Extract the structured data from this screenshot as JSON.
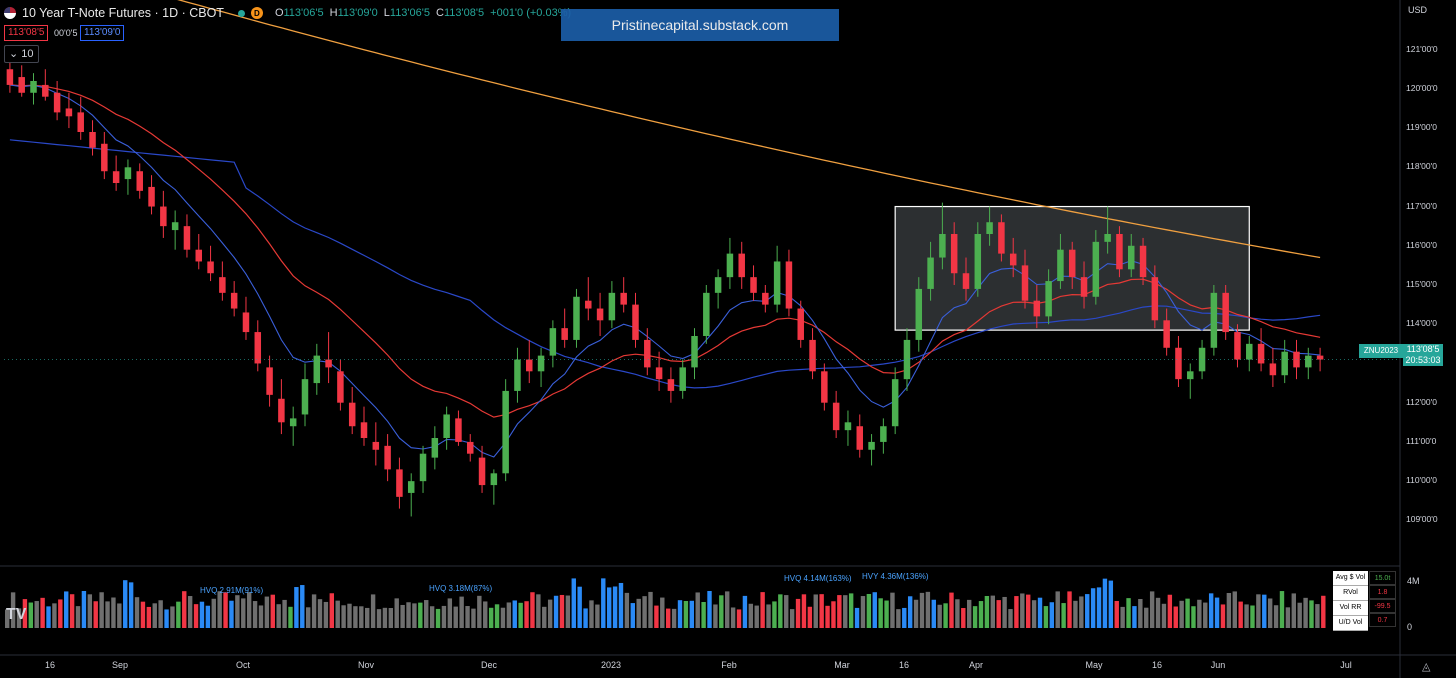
{
  "header": {
    "title": "10 Year T-Note Futures · 1D · CBOT",
    "d_badge": "D",
    "ohlc": {
      "o_label": "O",
      "o": "113'06'5",
      "h_label": "H",
      "h": "113'09'0",
      "l_label": "L",
      "l": "113'06'5",
      "c_label": "C",
      "c": "113'08'5",
      "change": "+001'0 (+0.03%)"
    },
    "bid": "113'08'5",
    "spread": "00'0'5",
    "ask": "113'09'0",
    "indicator": "10"
  },
  "watermark": "Pristinecapital.substack.com",
  "currency": "USD",
  "symbol_tag": "ZNU2023",
  "current_price": "113'08'5",
  "countdown": "20:53:03",
  "colors": {
    "up": "#4caf50",
    "down": "#f23645",
    "ema_fast": "#3a5fd9",
    "ema_slow": "#e53935",
    "sma50": "#2a48c8",
    "sma200": "#f0a040",
    "box": "#ffffff",
    "vol_blue": "#2a8af6",
    "vol_gray": "#6f6f6f"
  },
  "axis": {
    "price_ticks": [
      "121'00'0",
      "120'00'0",
      "119'00'0",
      "118'00'0",
      "117'00'0",
      "116'00'0",
      "115'00'0",
      "114'00'0",
      "113'00'0",
      "112'00'0",
      "111'00'0",
      "110'00'0",
      "109'00'0"
    ],
    "time_ticks": [
      "16",
      "Sep",
      "Oct",
      "Nov",
      "Dec",
      "2023",
      "Feb",
      "Mar",
      "16",
      "Apr",
      "May",
      "16",
      "Jun",
      "Jul"
    ],
    "volume_ticks": [
      "4M",
      "0"
    ]
  },
  "volume_annotations": [
    "HVQ 2.91M(91%)",
    "HVQ 3.18M(87%)",
    "HVQ 4.14M(163%)",
    "HVY 4.36M(136%)"
  ],
  "stats_table": [
    {
      "label": "Avg $ Vol",
      "value": "15.0t"
    },
    {
      "label": "RVol",
      "value": "1.8"
    },
    {
      "label": "Vol RR",
      "value": "-99.5"
    },
    {
      "label": "U/D Vol",
      "value": "0.7"
    }
  ],
  "chart_data": {
    "type": "candlestick",
    "title": "10 Year T-Note Futures · 1D · CBOT",
    "xlabel": "",
    "ylabel": "",
    "ylim": [
      108.5,
      121.5
    ],
    "x_start": "Aug 12",
    "x_end": "Jun 30",
    "candles": [
      [
        120.5,
        120.7,
        119.9,
        120.1
      ],
      [
        120.3,
        120.6,
        119.8,
        119.9
      ],
      [
        119.9,
        120.4,
        119.6,
        120.2
      ],
      [
        120.1,
        120.5,
        119.7,
        119.8
      ],
      [
        119.9,
        120.2,
        119.2,
        119.4
      ],
      [
        119.5,
        119.9,
        119.0,
        119.3
      ],
      [
        119.4,
        119.8,
        118.7,
        118.9
      ],
      [
        118.9,
        119.2,
        118.3,
        118.5
      ],
      [
        118.6,
        118.9,
        117.7,
        117.9
      ],
      [
        117.9,
        118.3,
        117.4,
        117.6
      ],
      [
        117.7,
        118.2,
        117.3,
        118.0
      ],
      [
        117.9,
        118.1,
        117.2,
        117.4
      ],
      [
        117.5,
        117.8,
        116.8,
        117.0
      ],
      [
        117.0,
        117.4,
        116.2,
        116.5
      ],
      [
        116.4,
        116.9,
        115.9,
        116.6
      ],
      [
        116.5,
        116.8,
        115.7,
        115.9
      ],
      [
        115.9,
        116.3,
        115.4,
        115.6
      ],
      [
        115.6,
        116.0,
        115.1,
        115.3
      ],
      [
        115.2,
        115.6,
        114.6,
        114.8
      ],
      [
        114.8,
        115.1,
        114.2,
        114.4
      ],
      [
        114.3,
        114.7,
        113.6,
        113.8
      ],
      [
        113.8,
        114.1,
        112.8,
        113.0
      ],
      [
        112.9,
        113.2,
        111.9,
        112.2
      ],
      [
        112.1,
        112.6,
        111.2,
        111.5
      ],
      [
        111.4,
        111.9,
        110.9,
        111.6
      ],
      [
        111.7,
        113.0,
        111.4,
        112.6
      ],
      [
        112.5,
        113.5,
        112.2,
        113.2
      ],
      [
        113.1,
        113.8,
        112.5,
        112.9
      ],
      [
        112.8,
        113.1,
        111.8,
        112.0
      ],
      [
        112.0,
        112.4,
        111.2,
        111.4
      ],
      [
        111.5,
        111.9,
        110.9,
        111.1
      ],
      [
        111.0,
        111.5,
        110.4,
        110.8
      ],
      [
        110.9,
        111.2,
        110.0,
        110.3
      ],
      [
        110.3,
        110.6,
        109.3,
        109.6
      ],
      [
        109.7,
        110.2,
        109.1,
        110.0
      ],
      [
        110.0,
        110.9,
        109.7,
        110.7
      ],
      [
        110.6,
        111.4,
        110.3,
        111.1
      ],
      [
        111.1,
        111.9,
        110.8,
        111.7
      ],
      [
        111.6,
        111.8,
        110.9,
        111.0
      ],
      [
        111.0,
        111.2,
        110.5,
        110.7
      ],
      [
        110.6,
        110.9,
        109.7,
        109.9
      ],
      [
        109.9,
        110.3,
        109.4,
        110.2
      ],
      [
        110.2,
        112.6,
        110.0,
        112.3
      ],
      [
        112.3,
        113.4,
        112.0,
        113.1
      ],
      [
        113.1,
        113.6,
        112.5,
        112.8
      ],
      [
        112.8,
        113.4,
        112.4,
        113.2
      ],
      [
        113.2,
        114.1,
        112.9,
        113.9
      ],
      [
        113.9,
        114.4,
        113.4,
        113.6
      ],
      [
        113.6,
        114.9,
        113.4,
        114.7
      ],
      [
        114.6,
        115.2,
        114.1,
        114.4
      ],
      [
        114.4,
        114.8,
        113.7,
        114.1
      ],
      [
        114.1,
        115.1,
        113.9,
        114.8
      ],
      [
        114.8,
        115.2,
        114.3,
        114.5
      ],
      [
        114.5,
        114.8,
        113.4,
        113.6
      ],
      [
        113.6,
        113.9,
        112.7,
        112.9
      ],
      [
        112.9,
        113.3,
        112.3,
        112.6
      ],
      [
        112.6,
        112.9,
        112.0,
        112.3
      ],
      [
        112.3,
        113.1,
        112.1,
        112.9
      ],
      [
        112.9,
        113.9,
        112.6,
        113.7
      ],
      [
        113.7,
        115.0,
        113.5,
        114.8
      ],
      [
        114.8,
        115.4,
        114.4,
        115.2
      ],
      [
        115.2,
        116.2,
        114.9,
        115.8
      ],
      [
        115.8,
        116.1,
        114.9,
        115.2
      ],
      [
        115.2,
        115.5,
        114.6,
        114.8
      ],
      [
        114.8,
        115.0,
        114.3,
        114.5
      ],
      [
        114.5,
        116.0,
        114.3,
        115.6
      ],
      [
        115.6,
        115.9,
        114.2,
        114.4
      ],
      [
        114.4,
        114.6,
        113.4,
        113.6
      ],
      [
        113.6,
        113.9,
        112.6,
        112.8
      ],
      [
        112.8,
        113.0,
        111.8,
        112.0
      ],
      [
        112.0,
        112.3,
        111.1,
        111.3
      ],
      [
        111.3,
        111.8,
        110.9,
        111.5
      ],
      [
        111.4,
        111.7,
        110.6,
        110.8
      ],
      [
        110.8,
        111.2,
        110.4,
        111.0
      ],
      [
        111.0,
        111.6,
        110.7,
        111.4
      ],
      [
        111.4,
        112.9,
        111.2,
        112.6
      ],
      [
        112.6,
        113.9,
        112.3,
        113.6
      ],
      [
        113.6,
        115.2,
        113.3,
        114.9
      ],
      [
        114.9,
        116.1,
        114.6,
        115.7
      ],
      [
        115.7,
        117.1,
        115.4,
        116.3
      ],
      [
        116.3,
        116.6,
        115.0,
        115.3
      ],
      [
        115.3,
        115.7,
        114.6,
        114.9
      ],
      [
        114.9,
        116.6,
        114.7,
        116.3
      ],
      [
        116.3,
        117.0,
        116.0,
        116.6
      ],
      [
        116.6,
        116.8,
        115.6,
        115.8
      ],
      [
        115.8,
        116.2,
        115.2,
        115.5
      ],
      [
        115.5,
        115.9,
        114.4,
        114.6
      ],
      [
        114.6,
        115.0,
        113.9,
        114.2
      ],
      [
        114.2,
        115.4,
        114.0,
        115.1
      ],
      [
        115.1,
        116.3,
        114.9,
        115.9
      ],
      [
        115.9,
        116.1,
        114.9,
        115.2
      ],
      [
        115.2,
        115.6,
        114.4,
        114.7
      ],
      [
        114.7,
        116.4,
        114.5,
        116.1
      ],
      [
        116.1,
        117.0,
        115.8,
        116.3
      ],
      [
        116.3,
        116.5,
        115.2,
        115.4
      ],
      [
        115.4,
        116.3,
        115.2,
        116.0
      ],
      [
        116.0,
        116.2,
        115.0,
        115.2
      ],
      [
        115.2,
        115.5,
        113.9,
        114.1
      ],
      [
        114.1,
        114.4,
        113.2,
        113.4
      ],
      [
        113.4,
        113.7,
        112.4,
        112.6
      ],
      [
        112.6,
        113.0,
        112.1,
        112.8
      ],
      [
        112.8,
        113.6,
        112.6,
        113.4
      ],
      [
        113.4,
        115.0,
        113.2,
        114.8
      ],
      [
        114.8,
        115.0,
        113.6,
        113.8
      ],
      [
        113.8,
        114.0,
        112.9,
        113.1
      ],
      [
        113.1,
        113.7,
        112.8,
        113.5
      ],
      [
        113.5,
        113.9,
        112.8,
        113.0
      ],
      [
        113.0,
        113.4,
        112.4,
        112.7
      ],
      [
        112.7,
        113.6,
        112.5,
        113.3
      ],
      [
        113.3,
        113.6,
        112.6,
        112.9
      ],
      [
        112.9,
        113.4,
        112.6,
        113.2
      ],
      [
        113.2,
        113.4,
        112.8,
        113.1
      ]
    ]
  }
}
